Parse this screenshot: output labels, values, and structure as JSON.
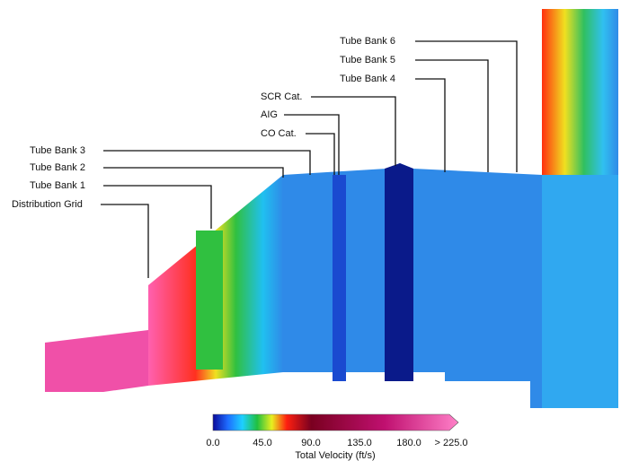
{
  "callouts": [
    "Tube Bank 6",
    "Tube Bank 5",
    "Tube Bank 4",
    "SCR Cat.",
    "AIG",
    "CO Cat.",
    "Tube Bank 3",
    "Tube Bank 2",
    "Tube Bank 1",
    "Distribution Grid"
  ],
  "colorbar": {
    "title": "Total Velocity (ft/s)",
    "tick_labels": [
      "0.0",
      "45.0",
      "90.0",
      "135.0",
      "180.0",
      "> 225.0"
    ]
  }
}
